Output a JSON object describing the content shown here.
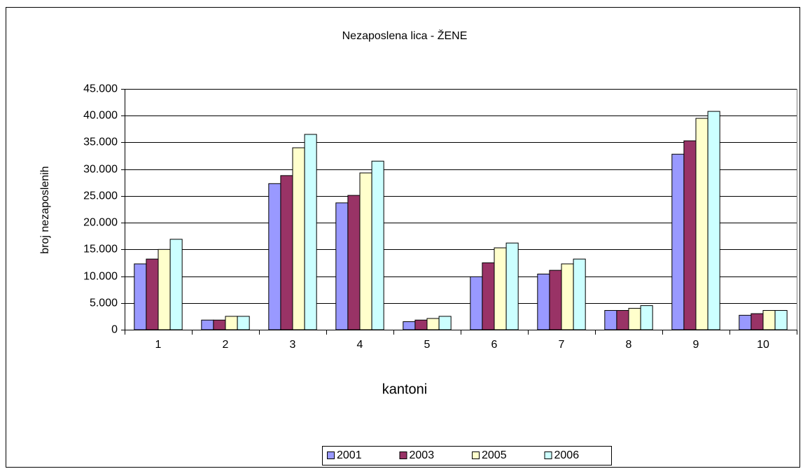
{
  "chart_data": {
    "type": "bar",
    "title": "Nezaposlena lica - ŽENE",
    "xlabel": "kantoni",
    "ylabel": "broj nezaposlenih",
    "categories": [
      "1",
      "2",
      "3",
      "4",
      "5",
      "6",
      "7",
      "8",
      "9",
      "10"
    ],
    "series": [
      {
        "name": "2001",
        "color": "#9999ff",
        "values": [
          12300,
          1800,
          27300,
          23700,
          1500,
          9900,
          10400,
          3600,
          32800,
          2700
        ]
      },
      {
        "name": "2003",
        "color": "#993366",
        "values": [
          13200,
          1800,
          28800,
          25100,
          1800,
          12500,
          11100,
          3600,
          35300,
          3000
        ]
      },
      {
        "name": "2005",
        "color": "#ffffcc",
        "values": [
          15000,
          2500,
          34000,
          29300,
          2100,
          15300,
          12300,
          4000,
          39500,
          3600
        ]
      },
      {
        "name": "2006",
        "color": "#ccffff",
        "values": [
          16900,
          2500,
          36500,
          31500,
          2500,
          16200,
          13200,
          4500,
          40800,
          3600
        ]
      }
    ],
    "ylim": [
      0,
      45000
    ],
    "yticks": [
      0,
      {
        "value": 5000,
        "label": "5.000"
      },
      {
        "value": 10000,
        "label": "10.000"
      },
      {
        "value": 15000,
        "label": "15.000"
      },
      {
        "value": 20000,
        "label": "20.000"
      },
      {
        "value": 25000,
        "label": "25.000"
      },
      {
        "value": 30000,
        "label": "30.000"
      },
      {
        "value": 35000,
        "label": "35.000"
      },
      {
        "value": 40000,
        "label": "40.000"
      },
      {
        "value": 45000,
        "label": "45.000"
      }
    ],
    "grid": true,
    "legend": "bottom"
  }
}
